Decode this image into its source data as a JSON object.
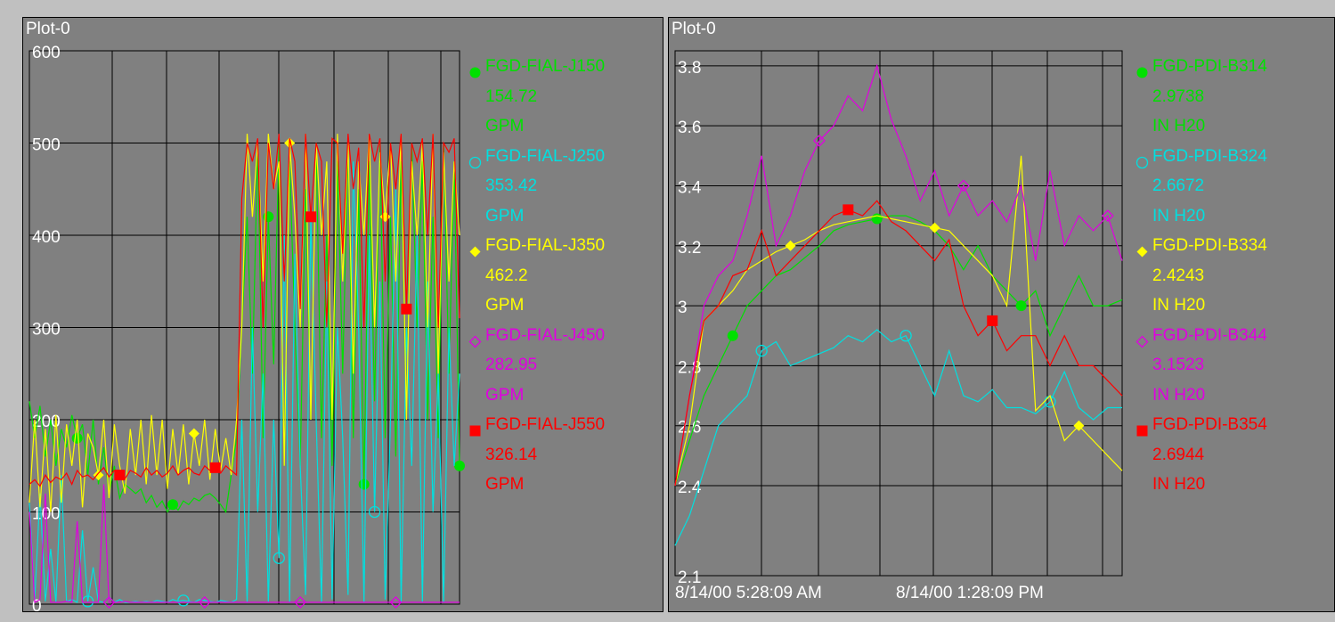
{
  "chart_data": [
    {
      "type": "line",
      "title": "Plot-0",
      "ylim": [
        0,
        600
      ],
      "yticks": [
        0,
        100,
        200,
        300,
        400,
        500,
        600
      ],
      "xlabel": "",
      "ylabel": "",
      "grid": true,
      "legend": "right",
      "x_tick_labels": [],
      "series": [
        {
          "name": "FGD-FIAL-J150",
          "value": "154.72",
          "unit": "GPM",
          "color": "#00e000",
          "marker": "circle",
          "values": [
            220,
            180,
            215,
            160,
            200,
            150,
            190,
            170,
            205,
            180,
            195,
            140,
            200,
            130,
            170,
            120,
            150,
            115,
            130,
            125,
            120,
            125,
            110,
            118,
            105,
            112,
            100,
            108,
            102,
            112,
            108,
            115,
            112,
            118,
            120,
            115,
            108,
            100,
            140,
            180,
            300,
            420,
            250,
            500,
            180,
            420,
            260,
            500,
            150,
            480,
            300,
            150,
            450,
            200,
            500,
            180,
            400,
            150,
            480,
            250,
            500,
            180,
            450,
            130,
            480,
            220,
            500,
            180,
            420,
            160,
            480,
            200,
            500,
            300,
            480,
            200,
            420,
            180,
            500,
            250,
            480,
            150
          ]
        },
        {
          "name": "FGD-FIAL-J250",
          "value": "353.42",
          "unit": "GPM",
          "color": "#00e0e0",
          "marker": "circle-open",
          "values": [
            110,
            5,
            120,
            3,
            60,
            2,
            140,
            3,
            5,
            2,
            80,
            3,
            40,
            3,
            2,
            8,
            2,
            5,
            2,
            2,
            3,
            2,
            3,
            2,
            4,
            3,
            2,
            5,
            3,
            4,
            3,
            2,
            5,
            4,
            3,
            2,
            4,
            3,
            2,
            5,
            200,
            2,
            300,
            100,
            250,
            2,
            200,
            50,
            400,
            2,
            380,
            150,
            10,
            420,
            200,
            2,
            350,
            5,
            300,
            180,
            10,
            480,
            300,
            2,
            400,
            100,
            350,
            5,
            200,
            450,
            2,
            300,
            150,
            400,
            2,
            350,
            100,
            250,
            2,
            300,
            150,
            250
          ]
        },
        {
          "name": "FGD-FIAL-J350",
          "value": "462.2",
          "unit": "GPM",
          "color": "#ffff00",
          "marker": "diamond",
          "values": [
            110,
            200,
            105,
            190,
            100,
            205,
            110,
            195,
            150,
            200,
            105,
            185,
            170,
            140,
            200,
            115,
            195,
            150,
            120,
            190,
            140,
            200,
            130,
            205,
            140,
            200,
            125,
            190,
            140,
            195,
            130,
            185,
            150,
            200,
            135,
            190,
            145,
            180,
            140,
            200,
            300,
            510,
            420,
            500,
            350,
            510,
            450,
            480,
            150,
            500,
            420,
            300,
            510,
            200,
            500,
            400,
            480,
            200,
            510,
            350,
            500,
            250,
            480,
            400,
            510,
            300,
            490,
            420,
            500,
            350,
            510,
            200,
            480,
            400,
            500,
            300,
            510,
            250,
            490,
            350,
            480,
            400
          ]
        },
        {
          "name": "FGD-FIAL-J450",
          "value": "282.95",
          "unit": "GPM",
          "color": "#e000e0",
          "marker": "diamond-open",
          "values": [
            100,
            2,
            5,
            120,
            2,
            2,
            2,
            3,
            2,
            90,
            2,
            2,
            2,
            2,
            130,
            2,
            2,
            2,
            3,
            2,
            2,
            2,
            2,
            2,
            2,
            2,
            2,
            2,
            2,
            2,
            2,
            2,
            2,
            2,
            2,
            2,
            2,
            2,
            2,
            2,
            2,
            2,
            2,
            2,
            2,
            2,
            2,
            2,
            2,
            2,
            2,
            2,
            2,
            2,
            2,
            2,
            2,
            2,
            2,
            2,
            2,
            2,
            2,
            2,
            2,
            2,
            2,
            2,
            2,
            2,
            2,
            2,
            2,
            2,
            2,
            2,
            2,
            2,
            2,
            2,
            2,
            2
          ]
        },
        {
          "name": "FGD-FIAL-J550",
          "value": "326.14",
          "unit": "GPM",
          "color": "#ff0000",
          "marker": "square",
          "values": [
            130,
            135,
            128,
            140,
            132,
            138,
            135,
            142,
            130,
            145,
            138,
            140,
            135,
            142,
            148,
            138,
            145,
            140,
            136,
            145,
            142,
            138,
            148,
            140,
            145,
            138,
            142,
            150,
            140,
            145,
            148,
            142,
            140,
            150,
            145,
            148,
            142,
            150,
            145,
            140,
            440,
            500,
            480,
            505,
            300,
            500,
            450,
            510,
            350,
            505,
            480,
            320,
            510,
            420,
            500,
            480,
            300,
            505,
            500,
            380,
            510,
            450,
            495,
            300,
            510,
            480,
            505,
            350,
            500,
            450,
            510,
            320,
            500,
            480,
            505,
            400,
            510,
            300,
            500,
            490,
            505,
            310
          ]
        }
      ]
    },
    {
      "type": "line",
      "title": "Plot-0",
      "ylim": [
        2.1,
        3.85
      ],
      "yticks": [
        2.1,
        2.4,
        2.6,
        2.8,
        3,
        3.2,
        3.4,
        3.6,
        3.8
      ],
      "xlabel": "",
      "ylabel": "",
      "grid": true,
      "legend": "right",
      "x_tick_labels": [
        "8/14/00 5:28:09 AM",
        "8/14/00 1:28:09 PM"
      ],
      "series": [
        {
          "name": "FGD-PDI-B314",
          "value": "2.9738",
          "unit": "IN H20",
          "color": "#00e000",
          "marker": "circle",
          "values": [
            2.4,
            2.55,
            2.7,
            2.8,
            2.9,
            3.0,
            3.05,
            3.1,
            3.12,
            3.16,
            3.2,
            3.25,
            3.27,
            3.28,
            3.29,
            3.3,
            3.3,
            3.28,
            3.25,
            3.2,
            3.12,
            3.2,
            3.1,
            3.05,
            3.0,
            3.05,
            2.9,
            3.0,
            3.1,
            3.0,
            3.0,
            3.02
          ]
        },
        {
          "name": "FGD-PDI-B324",
          "value": "2.6672",
          "unit": "IN H20",
          "color": "#00e0e0",
          "marker": "circle-open",
          "values": [
            2.2,
            2.3,
            2.45,
            2.6,
            2.65,
            2.7,
            2.85,
            2.88,
            2.8,
            2.82,
            2.84,
            2.86,
            2.9,
            2.88,
            2.92,
            2.88,
            2.9,
            2.8,
            2.7,
            2.85,
            2.7,
            2.68,
            2.72,
            2.66,
            2.66,
            2.64,
            2.68,
            2.78,
            2.66,
            2.62,
            2.66,
            2.66
          ]
        },
        {
          "name": "FGD-PDI-B334",
          "value": "2.4243",
          "unit": "IN H20",
          "color": "#ffff00",
          "marker": "diamond",
          "values": [
            2.4,
            2.6,
            2.95,
            3.0,
            3.05,
            3.12,
            3.15,
            3.18,
            3.2,
            3.22,
            3.25,
            3.27,
            3.28,
            3.29,
            3.3,
            3.29,
            3.28,
            3.27,
            3.26,
            3.25,
            3.2,
            3.15,
            3.1,
            3.0,
            3.5,
            2.65,
            2.7,
            2.55,
            2.6,
            2.55,
            2.5,
            2.45
          ]
        },
        {
          "name": "FGD-PDI-B344",
          "value": "3.1523",
          "unit": "IN H20",
          "color": "#e000e0",
          "marker": "diamond-open",
          "values": [
            2.4,
            2.7,
            3.0,
            3.1,
            3.15,
            3.3,
            3.5,
            3.2,
            3.3,
            3.45,
            3.55,
            3.6,
            3.7,
            3.65,
            3.8,
            3.62,
            3.5,
            3.35,
            3.45,
            3.3,
            3.4,
            3.3,
            3.35,
            3.28,
            3.4,
            3.15,
            3.45,
            3.2,
            3.3,
            3.25,
            3.3,
            3.15
          ]
        },
        {
          "name": "FGD-PDI-B354",
          "value": "2.6944",
          "unit": "IN H20",
          "color": "#ff0000",
          "marker": "square",
          "values": [
            2.4,
            2.7,
            2.95,
            3.0,
            3.1,
            3.12,
            3.25,
            3.1,
            3.15,
            3.2,
            3.25,
            3.3,
            3.32,
            3.3,
            3.35,
            3.28,
            3.25,
            3.2,
            3.15,
            3.22,
            3.0,
            2.9,
            2.95,
            2.85,
            2.9,
            2.9,
            2.8,
            2.9,
            2.8,
            2.8,
            2.75,
            2.7
          ]
        }
      ]
    }
  ]
}
